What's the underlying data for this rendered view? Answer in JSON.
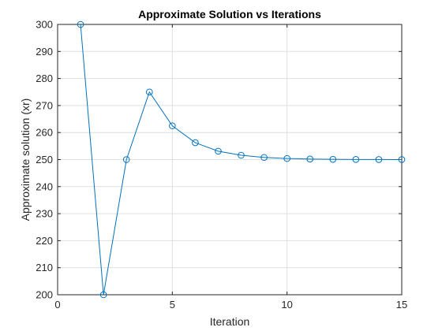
{
  "chart_data": {
    "type": "line",
    "title": "Approximate Solution vs Iterations",
    "xlabel": "Iteration",
    "ylabel": "Approximate solution (xr)",
    "xlim": [
      0,
      15
    ],
    "ylim": [
      200,
      300
    ],
    "xticks": [
      0,
      5,
      10,
      15
    ],
    "yticks": [
      200,
      210,
      220,
      230,
      240,
      250,
      260,
      270,
      280,
      290,
      300
    ],
    "grid": true,
    "marker": "circle",
    "line_color": "#0072bd",
    "series": [
      {
        "x": [
          1,
          2,
          3,
          4,
          5,
          6,
          7,
          8,
          9,
          10,
          11,
          12,
          13,
          14,
          15
        ],
        "values": [
          300,
          200,
          250,
          275,
          262.5,
          256.25,
          253.1,
          251.6,
          250.8,
          250.4,
          250.2,
          250.1,
          250.05,
          250.02,
          250.01
        ]
      }
    ]
  }
}
